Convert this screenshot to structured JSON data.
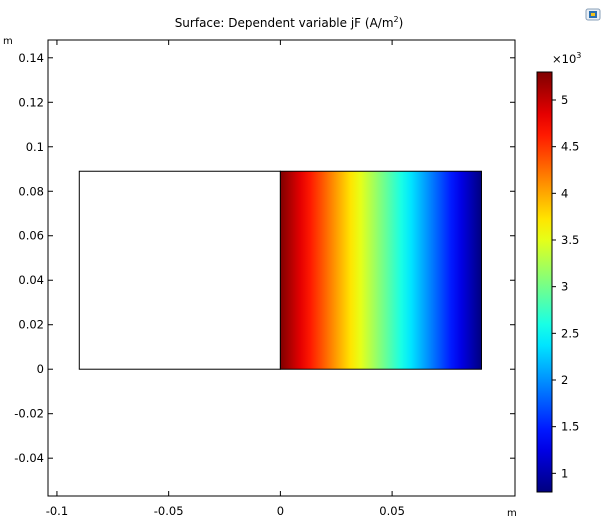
{
  "toolbar": {
    "camera_icon": "comsol-plot-window-icon"
  },
  "chart_data": {
    "type": "heatmap",
    "title": "Surface: Dependent variable jF (A/m",
    "title_sup": "2",
    "title_end": ")",
    "xlabel": "m",
    "ylabel": "m",
    "xlim": [
      -0.104,
      0.105
    ],
    "ylim": [
      -0.057,
      0.148
    ],
    "x_ticks": [
      -0.1,
      -0.05,
      0,
      0.05
    ],
    "x_tick_labels": [
      "-0.1",
      "-0.05",
      "0",
      "0.05"
    ],
    "y_ticks": [
      -0.04,
      -0.02,
      0,
      0.02,
      0.04,
      0.06,
      0.08,
      0.1,
      0.12,
      0.14
    ],
    "y_tick_labels": [
      "-0.04",
      "-0.02",
      "0",
      "0.02",
      "0.04",
      "0.06",
      "0.08",
      "0.1",
      "0.12",
      "0.14"
    ],
    "domains": [
      {
        "name": "left-domain",
        "x": [
          -0.09,
          0
        ],
        "y": [
          0,
          0.089
        ],
        "filled": false
      },
      {
        "name": "right-domain",
        "x": [
          0,
          0.09
        ],
        "y": [
          0,
          0.089
        ],
        "filled": true
      }
    ],
    "surface": {
      "x": [
        0,
        0.09
      ],
      "value_at_x_start": 5300,
      "value_at_x_end": 800,
      "profile": "linear-in-x"
    },
    "colorbar": {
      "colormap": "rainbow",
      "range": [
        800,
        5300
      ],
      "ticks": [
        1000,
        1500,
        2000,
        2500,
        3000,
        3500,
        4000,
        4500,
        5000
      ],
      "tick_labels": [
        "1",
        "1.5",
        "2",
        "2.5",
        "3",
        "3.5",
        "4",
        "4.5",
        "5"
      ],
      "multiplier": "×10",
      "multiplier_exp": "3"
    },
    "grid": false
  }
}
